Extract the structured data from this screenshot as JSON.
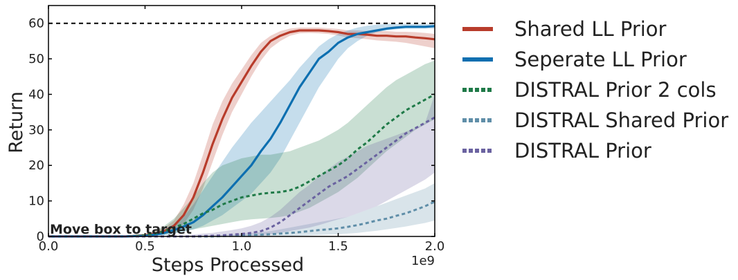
{
  "chart_data": {
    "type": "line",
    "xlabel": "Steps Processed",
    "ylabel": "Return",
    "x_offset_label": "1e9",
    "xlim": [
      0.0,
      2.0
    ],
    "ylim": [
      0,
      65
    ],
    "xticks": [
      0.0,
      0.5,
      1.0,
      1.5,
      2.0
    ],
    "xtick_labels": [
      "0.0",
      "0.5",
      "1.0",
      "1.5",
      "2.0"
    ],
    "yticks": [
      0,
      10,
      20,
      30,
      40,
      50,
      60
    ],
    "ytick_labels": [
      "0",
      "10",
      "20",
      "30",
      "40",
      "50",
      "60"
    ],
    "grid": false,
    "legend_position": "outside-right",
    "annotation": "Move box to target",
    "reference_line": {
      "y": 60,
      "style": "dashed",
      "color": "#000000"
    },
    "x": [
      0.0,
      0.1,
      0.2,
      0.3,
      0.4,
      0.5,
      0.55,
      0.6,
      0.65,
      0.7,
      0.75,
      0.8,
      0.85,
      0.9,
      0.95,
      1.0,
      1.05,
      1.1,
      1.15,
      1.2,
      1.25,
      1.3,
      1.35,
      1.4,
      1.45,
      1.5,
      1.55,
      1.6,
      1.65,
      1.7,
      1.75,
      1.8,
      1.85,
      1.9,
      1.95,
      2.0
    ],
    "series": [
      {
        "name": "Shared LL Prior",
        "color": "#b83c2b",
        "style": "solid",
        "values": [
          0,
          0,
          0,
          0,
          0,
          0.3,
          0.8,
          1.5,
          3.0,
          6.0,
          11.0,
          18.0,
          26.0,
          33.0,
          39.0,
          43.5,
          48.0,
          52.0,
          55.0,
          56.5,
          57.5,
          58.0,
          58.0,
          58.0,
          57.8,
          57.5,
          57.0,
          57.0,
          56.8,
          56.5,
          56.5,
          56.3,
          56.3,
          56.0,
          55.8,
          55.5
        ],
        "lower": [
          0,
          0,
          0,
          0,
          0,
          0,
          0.3,
          0.8,
          1.5,
          3.5,
          7.5,
          13.5,
          21.0,
          28.5,
          35.0,
          40.0,
          45.0,
          49.5,
          53.0,
          55.0,
          56.5,
          57.2,
          57.3,
          57.2,
          57.0,
          56.6,
          56.0,
          55.8,
          55.5,
          55.2,
          55.0,
          54.8,
          54.5,
          54.0,
          53.5,
          53.0
        ],
        "upper": [
          0,
          0,
          0,
          0,
          0.2,
          0.8,
          1.5,
          2.5,
          4.5,
          9.0,
          15.0,
          23.0,
          31.5,
          38.0,
          43.0,
          47.0,
          51.0,
          54.5,
          56.5,
          57.8,
          58.5,
          58.8,
          58.8,
          58.8,
          58.6,
          58.4,
          58.0,
          58.0,
          57.8,
          57.8,
          57.8,
          57.6,
          57.6,
          57.5,
          57.3,
          57.0
        ]
      },
      {
        "name": "Seperate LL Prior",
        "color": "#0d6fb0",
        "style": "solid",
        "values": [
          0,
          0,
          0,
          0,
          0,
          0.2,
          0.5,
          1.0,
          1.8,
          2.8,
          4.0,
          6.0,
          8.5,
          11.0,
          14.0,
          17.0,
          20.0,
          24.0,
          27.5,
          32.0,
          37.0,
          42.0,
          46.0,
          50.0,
          52.0,
          54.5,
          56.0,
          57.0,
          57.5,
          58.0,
          58.5,
          58.8,
          59.0,
          59.0,
          59.0,
          59.2
        ],
        "lower": [
          0,
          0,
          0,
          0,
          0,
          0,
          0.1,
          0.3,
          0.8,
          1.3,
          2.0,
          3.0,
          4.5,
          6.0,
          8.0,
          10.0,
          12.0,
          15.0,
          18.0,
          22.0,
          27.0,
          32.0,
          37.0,
          42.0,
          46.0,
          50.0,
          53.0,
          55.0,
          56.5,
          57.5,
          58.0,
          58.3,
          58.5,
          58.5,
          58.5,
          58.5
        ],
        "upper": [
          0,
          0,
          0,
          0,
          0.2,
          0.5,
          1.0,
          2.0,
          3.5,
          5.5,
          9.0,
          13.0,
          17.0,
          21.0,
          25.0,
          28.5,
          32.0,
          35.0,
          38.0,
          41.0,
          44.0,
          47.5,
          50.5,
          53.5,
          55.5,
          57.0,
          58.0,
          58.8,
          59.3,
          59.6,
          59.8,
          59.8,
          59.8,
          59.8,
          59.8,
          59.8
        ]
      },
      {
        "name": "DISTRAL Prior 2 cols",
        "color": "#1f7a48",
        "style": "dotted",
        "values": [
          0,
          0,
          0,
          0,
          0,
          0.3,
          0.8,
          1.5,
          2.5,
          3.5,
          5.0,
          6.5,
          7.5,
          9.0,
          10.0,
          11.0,
          11.5,
          12.0,
          12.3,
          12.5,
          13.0,
          14.0,
          15.5,
          17.0,
          18.5,
          20.0,
          22.0,
          24.5,
          26.5,
          29.0,
          31.5,
          33.5,
          35.5,
          37.0,
          38.5,
          40.0
        ],
        "lower": [
          0,
          0,
          0,
          0,
          0,
          0,
          0.2,
          0.5,
          1.0,
          1.5,
          2.0,
          2.5,
          3.0,
          3.5,
          4.0,
          4.5,
          4.8,
          5.0,
          5.2,
          5.5,
          6.0,
          7.0,
          8.0,
          9.5,
          11.0,
          12.5,
          14.5,
          16.5,
          19.0,
          21.5,
          24.0,
          26.0,
          28.0,
          30.0,
          31.5,
          33.0
        ],
        "upper": [
          0,
          0,
          0,
          0,
          0.2,
          0.8,
          1.5,
          3.0,
          5.0,
          8.0,
          11.0,
          15.0,
          18.0,
          20.0,
          21.0,
          22.0,
          22.5,
          23.0,
          23.0,
          23.5,
          24.0,
          25.0,
          26.0,
          27.0,
          28.5,
          30.0,
          32.0,
          34.5,
          37.0,
          39.5,
          42.0,
          44.0,
          45.5,
          47.0,
          48.5,
          49.5
        ]
      },
      {
        "name": "DISTRAL Shared Prior",
        "color": "#5f8ea8",
        "style": "dotted",
        "values": [
          0,
          0,
          0,
          0,
          0,
          0,
          0,
          0,
          0,
          0,
          0,
          0,
          0,
          0.1,
          0.2,
          0.3,
          0.4,
          0.5,
          0.6,
          0.8,
          1.0,
          1.2,
          1.5,
          1.8,
          2.0,
          2.3,
          2.7,
          3.2,
          3.8,
          4.5,
          5.0,
          5.8,
          6.5,
          7.5,
          8.5,
          9.8
        ],
        "lower": [
          0,
          0,
          0,
          0,
          0,
          0,
          0,
          0,
          0,
          0,
          0,
          0,
          0,
          0,
          0,
          0,
          0,
          0,
          0,
          0,
          0.1,
          0.2,
          0.3,
          0.4,
          0.5,
          0.6,
          0.8,
          1.0,
          1.3,
          1.6,
          2.0,
          2.4,
          2.8,
          3.3,
          3.8,
          4.5
        ],
        "upper": [
          0,
          0,
          0,
          0,
          0,
          0,
          0,
          0,
          0,
          0,
          0.1,
          0.2,
          0.3,
          0.4,
          0.6,
          0.8,
          1.0,
          1.2,
          1.5,
          2.0,
          2.5,
          3.0,
          3.5,
          4.0,
          4.5,
          5.0,
          5.5,
          6.5,
          7.5,
          8.5,
          9.5,
          10.5,
          11.5,
          12.5,
          13.5,
          15.0
        ]
      },
      {
        "name": "DISTRAL Prior",
        "color": "#6a62a0",
        "style": "dotted",
        "values": [
          0,
          0,
          0,
          0,
          0,
          0,
          0,
          0,
          0,
          0,
          0,
          0.1,
          0.2,
          0.3,
          0.5,
          0.7,
          1.0,
          1.5,
          2.5,
          4.0,
          6.0,
          8.0,
          10.0,
          12.0,
          14.0,
          15.5,
          17.0,
          19.0,
          21.0,
          23.0,
          25.0,
          27.0,
          29.0,
          30.5,
          32.0,
          33.5
        ],
        "lower": [
          0,
          0,
          0,
          0,
          0,
          0,
          0,
          0,
          0,
          0,
          0,
          0,
          0,
          0,
          0,
          0.1,
          0.2,
          0.3,
          0.6,
          1.0,
          1.5,
          2.0,
          2.5,
          3.2,
          4.0,
          4.8,
          5.5,
          6.5,
          7.5,
          8.5,
          10.0,
          11.5,
          13.0,
          14.5,
          16.0,
          18.0
        ],
        "upper": [
          0,
          0,
          0,
          0,
          0,
          0,
          0,
          0.1,
          0.2,
          0.3,
          0.5,
          0.8,
          1.0,
          1.4,
          1.8,
          2.3,
          3.0,
          4.0,
          5.5,
          7.5,
          10.0,
          12.5,
          14.5,
          17.0,
          19.0,
          21.0,
          22.5,
          24.0,
          25.5,
          26.5,
          27.5,
          28.5,
          29.5,
          30.5,
          32.0,
          40.0
        ]
      }
    ]
  }
}
